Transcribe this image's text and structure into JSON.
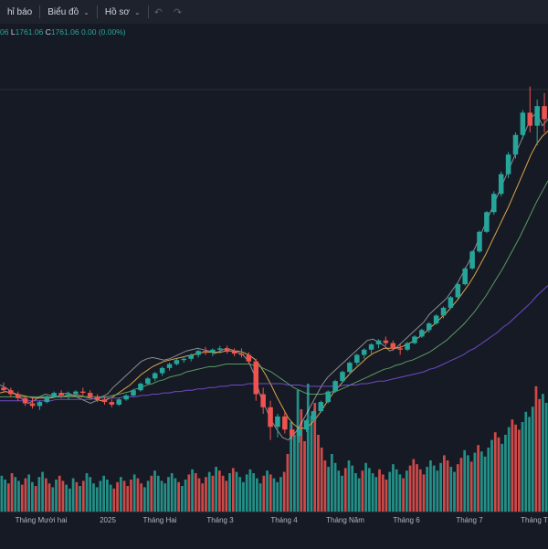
{
  "toolbar": {
    "indicators_label": "hỉ báo",
    "chart_label": "Biểu đồ",
    "profile_label": "Hồ sơ",
    "undo_icon": "undo-icon",
    "redo_icon": "redo-icon",
    "chevron_icon": "chevron-down-icon"
  },
  "ohlc": {
    "open_fragment": "06",
    "low_key": "L",
    "low_value": "1761.06",
    "close_key": "C",
    "close_value": "1761.06",
    "change": "0.00 (0.00%)"
  },
  "colors": {
    "up": "#26a69a",
    "down": "#ef5350",
    "ma_short": "#ffffff",
    "ma_mid": "#f0b44c",
    "ma_long": "#5fa869",
    "ma_longer": "#7b4fd6",
    "background": "#161a25"
  },
  "chart_data": {
    "type": "candlestick",
    "x_labels": [
      "Tháng Mười hai",
      "2025",
      "Tháng Hai",
      "Tháng 3",
      "Tháng 4",
      "Tháng Năm",
      "Tháng 6",
      "Tháng 7",
      "Tháng T"
    ],
    "series": [
      {
        "values": [
          0.52,
          0.5,
          0.47,
          0.44,
          0.41,
          0.38,
          0.4,
          0.43,
          0.45,
          0.44,
          0.43,
          0.45,
          0.46,
          0.44,
          0.42,
          0.4,
          0.38,
          0.4,
          0.43,
          0.45,
          0.5,
          0.54,
          0.58,
          0.62,
          0.66,
          0.7,
          0.72,
          0.73,
          0.72,
          0.71,
          0.72,
          0.74,
          0.76,
          0.78,
          0.79,
          0.8,
          0.79,
          0.78,
          0.76,
          0.78,
          0.8,
          0.79,
          0.77,
          0.75,
          0.7,
          0.6,
          0.45,
          0.35,
          0.25,
          0.18,
          0.12,
          0.1,
          0.14,
          0.2,
          0.28,
          0.36,
          0.44,
          0.52,
          0.58,
          0.62,
          0.66,
          0.7,
          0.74,
          0.78,
          0.82,
          0.86,
          0.87,
          0.85,
          0.82,
          0.78,
          0.8,
          0.84,
          0.88,
          0.92,
          0.96,
          1.0,
          1.06,
          1.1,
          1.14,
          1.18,
          1.24,
          1.3,
          1.38,
          1.46,
          1.56,
          1.66,
          1.76,
          1.86,
          1.96,
          2.06,
          2.16,
          2.26,
          2.36,
          2.46,
          2.56,
          2.6,
          2.5,
          2.55
        ]
      },
      {
        "values": [
          0.46,
          0.47,
          0.46,
          0.45,
          0.44,
          0.43,
          0.42,
          0.42,
          0.42,
          0.42,
          0.43,
          0.43,
          0.44,
          0.44,
          0.44,
          0.43,
          0.42,
          0.41,
          0.4,
          0.41,
          0.43,
          0.46,
          0.49,
          0.52,
          0.56,
          0.6,
          0.63,
          0.66,
          0.68,
          0.7,
          0.71,
          0.72,
          0.73,
          0.74,
          0.75,
          0.76,
          0.77,
          0.77,
          0.77,
          0.77,
          0.78,
          0.78,
          0.78,
          0.77,
          0.75,
          0.72,
          0.67,
          0.6,
          0.52,
          0.43,
          0.35,
          0.27,
          0.22,
          0.19,
          0.19,
          0.22,
          0.27,
          0.33,
          0.4,
          0.46,
          0.51,
          0.56,
          0.61,
          0.65,
          0.69,
          0.73,
          0.76,
          0.78,
          0.8,
          0.8,
          0.8,
          0.81,
          0.83,
          0.85,
          0.88,
          0.91,
          0.95,
          0.99,
          1.03,
          1.07,
          1.12,
          1.17,
          1.23,
          1.29,
          1.36,
          1.44,
          1.52,
          1.61,
          1.7,
          1.79,
          1.88,
          1.98,
          2.08,
          2.18,
          2.28,
          2.36,
          2.42,
          2.46
        ]
      },
      {
        "values": [
          0.43,
          0.43,
          0.43,
          0.43,
          0.43,
          0.43,
          0.43,
          0.43,
          0.43,
          0.43,
          0.43,
          0.43,
          0.43,
          0.43,
          0.43,
          0.43,
          0.43,
          0.43,
          0.43,
          0.43,
          0.44,
          0.45,
          0.46,
          0.47,
          0.49,
          0.5,
          0.52,
          0.53,
          0.55,
          0.56,
          0.58,
          0.59,
          0.6,
          0.62,
          0.63,
          0.64,
          0.65,
          0.66,
          0.66,
          0.67,
          0.68,
          0.68,
          0.68,
          0.68,
          0.68,
          0.67,
          0.66,
          0.64,
          0.62,
          0.59,
          0.56,
          0.53,
          0.5,
          0.48,
          0.46,
          0.45,
          0.45,
          0.45,
          0.46,
          0.47,
          0.48,
          0.5,
          0.52,
          0.54,
          0.56,
          0.58,
          0.6,
          0.62,
          0.64,
          0.65,
          0.67,
          0.68,
          0.7,
          0.71,
          0.73,
          0.75,
          0.77,
          0.8,
          0.83,
          0.86,
          0.9,
          0.94,
          0.98,
          1.03,
          1.08,
          1.14,
          1.2,
          1.27,
          1.34,
          1.41,
          1.49,
          1.57,
          1.65,
          1.74,
          1.83,
          1.92,
          2.0,
          2.08
        ]
      },
      {
        "values": [
          0.4,
          0.4,
          0.4,
          0.4,
          0.4,
          0.4,
          0.4,
          0.4,
          0.4,
          0.4,
          0.41,
          0.41,
          0.41,
          0.41,
          0.41,
          0.41,
          0.41,
          0.42,
          0.42,
          0.42,
          0.42,
          0.42,
          0.43,
          0.43,
          0.43,
          0.44,
          0.44,
          0.45,
          0.45,
          0.46,
          0.46,
          0.47,
          0.47,
          0.48,
          0.48,
          0.49,
          0.49,
          0.5,
          0.5,
          0.51,
          0.51,
          0.52,
          0.52,
          0.52,
          0.53,
          0.53,
          0.53,
          0.53,
          0.53,
          0.53,
          0.53,
          0.52,
          0.52,
          0.52,
          0.51,
          0.51,
          0.51,
          0.51,
          0.51,
          0.51,
          0.51,
          0.52,
          0.52,
          0.52,
          0.53,
          0.53,
          0.54,
          0.55,
          0.55,
          0.56,
          0.57,
          0.58,
          0.59,
          0.6,
          0.61,
          0.62,
          0.64,
          0.65,
          0.67,
          0.69,
          0.71,
          0.73,
          0.75,
          0.78,
          0.8,
          0.83,
          0.86,
          0.89,
          0.92,
          0.96,
          0.99,
          1.03,
          1.07,
          1.11,
          1.15,
          1.2,
          1.24,
          1.28
        ]
      }
    ],
    "candles": [
      [
        0.5,
        0.54,
        0.46,
        0.48
      ],
      [
        0.48,
        0.5,
        0.43,
        0.45
      ],
      [
        0.45,
        0.47,
        0.4,
        0.42
      ],
      [
        0.42,
        0.44,
        0.36,
        0.38
      ],
      [
        0.38,
        0.42,
        0.34,
        0.36
      ],
      [
        0.36,
        0.4,
        0.33,
        0.39
      ],
      [
        0.39,
        0.44,
        0.38,
        0.43
      ],
      [
        0.43,
        0.47,
        0.42,
        0.46
      ],
      [
        0.46,
        0.48,
        0.42,
        0.44
      ],
      [
        0.44,
        0.47,
        0.41,
        0.45
      ],
      [
        0.45,
        0.48,
        0.43,
        0.47
      ],
      [
        0.47,
        0.5,
        0.44,
        0.46
      ],
      [
        0.46,
        0.48,
        0.42,
        0.43
      ],
      [
        0.43,
        0.45,
        0.39,
        0.41
      ],
      [
        0.41,
        0.43,
        0.37,
        0.39
      ],
      [
        0.39,
        0.41,
        0.35,
        0.37
      ],
      [
        0.37,
        0.42,
        0.36,
        0.41
      ],
      [
        0.41,
        0.45,
        0.4,
        0.44
      ],
      [
        0.44,
        0.49,
        0.43,
        0.48
      ],
      [
        0.48,
        0.54,
        0.47,
        0.53
      ],
      [
        0.53,
        0.58,
        0.52,
        0.57
      ],
      [
        0.57,
        0.62,
        0.55,
        0.61
      ],
      [
        0.61,
        0.66,
        0.59,
        0.65
      ],
      [
        0.65,
        0.69,
        0.63,
        0.68
      ],
      [
        0.68,
        0.72,
        0.67,
        0.71
      ],
      [
        0.71,
        0.74,
        0.69,
        0.72
      ],
      [
        0.72,
        0.76,
        0.7,
        0.75
      ],
      [
        0.75,
        0.79,
        0.73,
        0.78
      ],
      [
        0.78,
        0.81,
        0.75,
        0.77
      ],
      [
        0.77,
        0.8,
        0.74,
        0.79
      ],
      [
        0.79,
        0.82,
        0.76,
        0.8
      ],
      [
        0.8,
        0.82,
        0.76,
        0.78
      ],
      [
        0.78,
        0.8,
        0.74,
        0.76
      ],
      [
        0.76,
        0.8,
        0.73,
        0.75
      ],
      [
        0.75,
        0.77,
        0.68,
        0.7
      ],
      [
        0.7,
        0.72,
        0.4,
        0.45
      ],
      [
        0.45,
        0.5,
        0.3,
        0.35
      ],
      [
        0.35,
        0.4,
        0.1,
        0.2
      ],
      [
        0.2,
        0.3,
        0.12,
        0.28
      ],
      [
        0.28,
        0.32,
        0.15,
        0.18
      ],
      [
        0.18,
        0.22,
        0.1,
        0.13
      ],
      [
        0.13,
        0.2,
        0.08,
        0.18
      ],
      [
        0.18,
        0.26,
        0.16,
        0.25
      ],
      [
        0.25,
        0.33,
        0.24,
        0.32
      ],
      [
        0.32,
        0.4,
        0.31,
        0.39
      ],
      [
        0.39,
        0.48,
        0.38,
        0.47
      ],
      [
        0.47,
        0.56,
        0.46,
        0.55
      ],
      [
        0.55,
        0.63,
        0.54,
        0.62
      ],
      [
        0.62,
        0.7,
        0.6,
        0.69
      ],
      [
        0.69,
        0.76,
        0.67,
        0.75
      ],
      [
        0.75,
        0.8,
        0.72,
        0.79
      ],
      [
        0.79,
        0.84,
        0.76,
        0.83
      ],
      [
        0.83,
        0.87,
        0.8,
        0.86
      ],
      [
        0.86,
        0.89,
        0.82,
        0.84
      ],
      [
        0.84,
        0.86,
        0.78,
        0.8
      ],
      [
        0.8,
        0.83,
        0.75,
        0.79
      ],
      [
        0.79,
        0.85,
        0.78,
        0.84
      ],
      [
        0.84,
        0.9,
        0.83,
        0.89
      ],
      [
        0.89,
        0.95,
        0.88,
        0.94
      ],
      [
        0.94,
        1.0,
        0.92,
        0.99
      ],
      [
        0.99,
        1.06,
        0.98,
        1.05
      ],
      [
        1.05,
        1.12,
        1.03,
        1.11
      ],
      [
        1.11,
        1.2,
        1.1,
        1.19
      ],
      [
        1.19,
        1.3,
        1.18,
        1.29
      ],
      [
        1.29,
        1.42,
        1.28,
        1.41
      ],
      [
        1.41,
        1.55,
        1.4,
        1.54
      ],
      [
        1.54,
        1.7,
        1.53,
        1.69
      ],
      [
        1.69,
        1.85,
        1.68,
        1.84
      ],
      [
        1.84,
        2.0,
        1.82,
        1.98
      ],
      [
        1.98,
        2.15,
        1.96,
        2.13
      ],
      [
        2.13,
        2.3,
        2.1,
        2.28
      ],
      [
        2.28,
        2.45,
        2.25,
        2.43
      ],
      [
        2.43,
        2.62,
        2.4,
        2.6
      ],
      [
        2.6,
        2.8,
        2.45,
        2.5
      ],
      [
        2.5,
        2.7,
        2.35,
        2.65
      ],
      [
        2.65,
        2.75,
        2.45,
        2.55
      ]
    ],
    "volumes": [
      0.28,
      0.25,
      0.22,
      0.3,
      0.27,
      0.24,
      0.21,
      0.26,
      0.29,
      0.23,
      0.2,
      0.27,
      0.31,
      0.26,
      0.22,
      0.19,
      0.25,
      0.28,
      0.24,
      0.21,
      0.18,
      0.26,
      0.23,
      0.2,
      0.24,
      0.3,
      0.27,
      0.22,
      0.19,
      0.24,
      0.28,
      0.25,
      0.21,
      0.18,
      0.23,
      0.27,
      0.24,
      0.2,
      0.25,
      0.29,
      0.26,
      0.22,
      0.19,
      0.24,
      0.28,
      0.32,
      0.28,
      0.24,
      0.22,
      0.27,
      0.3,
      0.26,
      0.23,
      0.2,
      0.25,
      0.29,
      0.33,
      0.3,
      0.26,
      0.22,
      0.27,
      0.31,
      0.28,
      0.35,
      0.32,
      0.28,
      0.24,
      0.3,
      0.34,
      0.31,
      0.27,
      0.23,
      0.29,
      0.33,
      0.3,
      0.26,
      0.22,
      0.28,
      0.32,
      0.29,
      0.26,
      0.23,
      0.27,
      0.31,
      0.45,
      0.7,
      0.6,
      0.95,
      0.8,
      0.55,
      1.0,
      0.75,
      0.85,
      0.6,
      0.5,
      0.4,
      0.35,
      0.45,
      0.38,
      0.32,
      0.28,
      0.34,
      0.4,
      0.36,
      0.3,
      0.26,
      0.32,
      0.38,
      0.34,
      0.3,
      0.27,
      0.33,
      0.29,
      0.25,
      0.31,
      0.37,
      0.33,
      0.29,
      0.26,
      0.32,
      0.36,
      0.41,
      0.37,
      0.33,
      0.29,
      0.35,
      0.4,
      0.36,
      0.32,
      0.38,
      0.44,
      0.4,
      0.35,
      0.31,
      0.37,
      0.42,
      0.48,
      0.44,
      0.39,
      0.46,
      0.52,
      0.47,
      0.43,
      0.5,
      0.56,
      0.62,
      0.58,
      0.53,
      0.6,
      0.66,
      0.72,
      0.68,
      0.64,
      0.7,
      0.78,
      0.74,
      0.82,
      0.98,
      0.88,
      0.92,
      0.85
    ],
    "ylim": [
      0.0,
      3.0
    ]
  }
}
